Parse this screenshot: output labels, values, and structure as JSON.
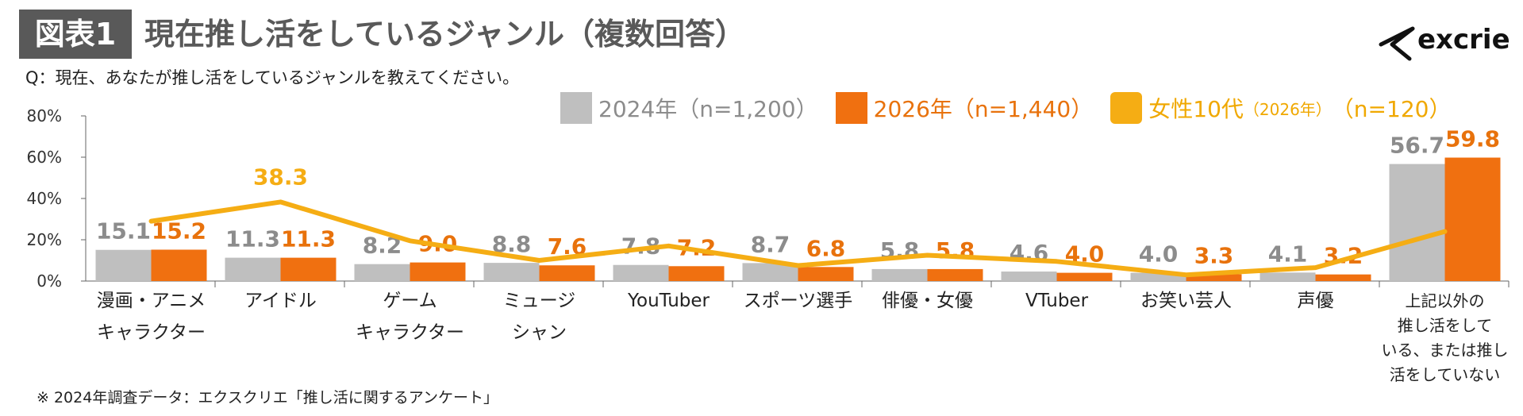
{
  "header": {
    "badge": "図表1",
    "title": "現在推し活をしているジャンル（複数回答）",
    "question": "Q：現在、あなたが推し活をしているジャンルを教えてください。"
  },
  "logo": {
    "text": "excrie",
    "icon": "excrie-logo-mark"
  },
  "footnote": "※ 2024年調査データ：エクスクリエ「推し活に関するアンケート」",
  "legend": [
    {
      "label": "2024年（n=1,200）",
      "color": "#bfbfbf",
      "text_color": "#8c8c8c"
    },
    {
      "label": "2026年（n=1,440）",
      "color": "#f07010",
      "text_color": "#e8720c"
    },
    {
      "label": "女性10代",
      "sublabel": "（2026年）",
      "suffix": "（n=120）",
      "color": "#f5ad14",
      "text_color": "#f0a800"
    }
  ],
  "chart_data": {
    "type": "bar",
    "ylim": [
      0,
      80
    ],
    "yticks": [
      "0%",
      "20%",
      "40%",
      "60%",
      "80%"
    ],
    "categories": [
      [
        "漫画・アニメ",
        "キャラクター"
      ],
      [
        "アイドル"
      ],
      [
        "ゲーム",
        "キャラクター"
      ],
      [
        "ミュージ",
        "シャン"
      ],
      [
        "YouTuber"
      ],
      [
        "スポーツ選手"
      ],
      [
        "俳優・女優"
      ],
      [
        "VTuber"
      ],
      [
        "お笑い芸人"
      ],
      [
        "声優"
      ],
      [
        "上記以外の",
        "推し活をして",
        "いる、または推し",
        "活をしていない"
      ]
    ],
    "series": [
      {
        "name": "2024年（n=1,200）",
        "kind": "bar",
        "color": "#bfbfbf",
        "label_color": "#8c8c8c",
        "values": [
          15.1,
          11.3,
          8.2,
          8.8,
          7.8,
          8.7,
          5.8,
          4.6,
          4.0,
          4.1,
          56.7
        ]
      },
      {
        "name": "2026年（n=1,440）",
        "kind": "bar",
        "color": "#f07010",
        "label_color": "#e8720c",
        "values": [
          15.2,
          11.3,
          9.0,
          7.6,
          7.2,
          6.8,
          5.8,
          4.0,
          3.3,
          3.2,
          59.8
        ]
      },
      {
        "name": "女性10代（2026年）（n=120）",
        "kind": "line",
        "color": "#f5ad14",
        "values": [
          29,
          38.3,
          19.5,
          10,
          17,
          7.5,
          12.5,
          9.5,
          3,
          6.5,
          24
        ]
      }
    ],
    "line_label": {
      "index": 1,
      "text": "38.3"
    },
    "legend_position": "top"
  }
}
